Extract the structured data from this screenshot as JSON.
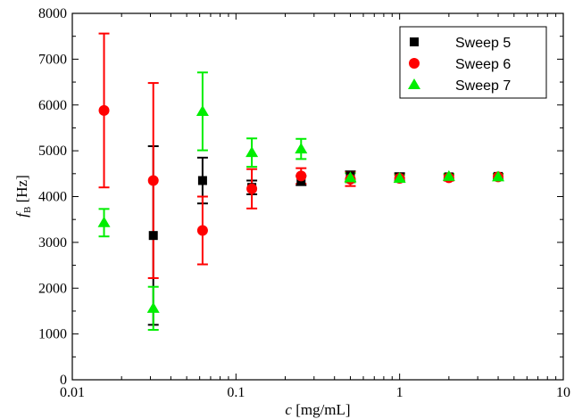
{
  "chart_data": {
    "type": "scatter",
    "title": "",
    "xlabel_italic": "c",
    "xlabel_rest": " [mg/mL]",
    "ylabel_italic": "f",
    "ylabel_sub": "B",
    "ylabel_rest": " [Hz]",
    "xscale": "log",
    "xlim": [
      0.01,
      10
    ],
    "ylim": [
      0,
      8000
    ],
    "x_ticks": [
      0.01,
      0.1,
      1,
      10
    ],
    "x_tick_labels": [
      "0.01",
      "0.1",
      "1",
      "10"
    ],
    "y_ticks": [
      0,
      1000,
      2000,
      3000,
      4000,
      5000,
      6000,
      7000,
      8000
    ],
    "y_tick_labels": [
      "0",
      "1000",
      "2000",
      "3000",
      "4000",
      "5000",
      "6000",
      "7000",
      "8000"
    ],
    "grid": false,
    "legend_position": "top-right",
    "series": [
      {
        "name": "Sweep 5",
        "marker": "square",
        "color": "#000000",
        "points": [
          {
            "x": 0.03125,
            "y": 3150,
            "err": 1950
          },
          {
            "x": 0.0625,
            "y": 4350,
            "err": 500
          },
          {
            "x": 0.125,
            "y": 4200,
            "err": 150
          },
          {
            "x": 0.25,
            "y": 4350,
            "err": 100
          },
          {
            "x": 0.5,
            "y": 4450,
            "err": 100
          },
          {
            "x": 1,
            "y": 4430,
            "err": 80
          },
          {
            "x": 2,
            "y": 4430,
            "err": 60
          },
          {
            "x": 4,
            "y": 4440,
            "err": 60
          }
        ]
      },
      {
        "name": "Sweep 6",
        "marker": "circle",
        "color": "#ff0000",
        "points": [
          {
            "x": 0.015625,
            "y": 5880,
            "err": 1680
          },
          {
            "x": 0.03125,
            "y": 4350,
            "err": 2130
          },
          {
            "x": 0.0625,
            "y": 3260,
            "err": 740
          },
          {
            "x": 0.125,
            "y": 4170,
            "err": 430
          },
          {
            "x": 0.25,
            "y": 4450,
            "err": 170
          },
          {
            "x": 0.5,
            "y": 4380,
            "err": 150
          },
          {
            "x": 1,
            "y": 4400,
            "err": 80
          },
          {
            "x": 2,
            "y": 4410,
            "err": 60
          },
          {
            "x": 4,
            "y": 4430,
            "err": 60
          }
        ]
      },
      {
        "name": "Sweep 7",
        "marker": "triangle",
        "color": "#00ee00",
        "points": [
          {
            "x": 0.015625,
            "y": 3430,
            "err": 300
          },
          {
            "x": 0.03125,
            "y": 1560,
            "err": 470
          },
          {
            "x": 0.0625,
            "y": 5860,
            "err": 850
          },
          {
            "x": 0.125,
            "y": 4960,
            "err": 310
          },
          {
            "x": 0.25,
            "y": 5040,
            "err": 220
          },
          {
            "x": 0.5,
            "y": 4410,
            "err": 100
          },
          {
            "x": 1,
            "y": 4400,
            "err": 70
          },
          {
            "x": 2,
            "y": 4440,
            "err": 60
          },
          {
            "x": 4,
            "y": 4430,
            "err": 60
          }
        ]
      }
    ]
  }
}
